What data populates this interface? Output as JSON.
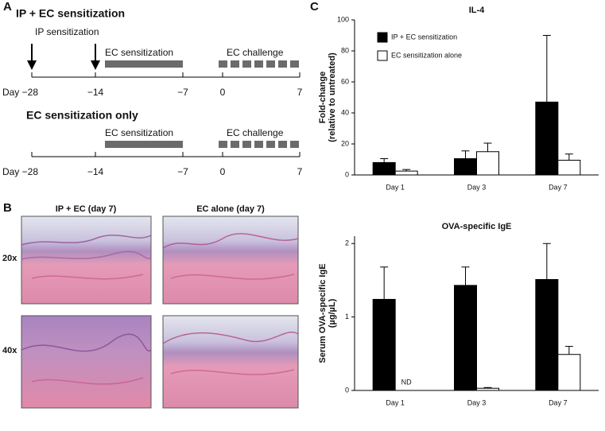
{
  "panel_a": {
    "label": "A",
    "timelines": [
      {
        "title": "IP + EC sensitization",
        "arrow_label": "IP sensitization",
        "sensitization_label": "EC sensitization",
        "challenge_label": "EC challenge",
        "ticks": [
          "Day −28",
          "−14",
          "−7",
          "0",
          "7"
        ]
      },
      {
        "title": "EC sensitization only",
        "sensitization_label": "EC sensitization",
        "challenge_label": "EC challenge",
        "ticks": [
          "Day −28",
          "−14",
          "−7",
          "0",
          "7"
        ]
      }
    ]
  },
  "panel_b": {
    "label": "B",
    "columns": [
      "IP + EC (day 7)",
      "EC alone (day 7)"
    ],
    "rows": [
      "20x",
      "40x"
    ]
  },
  "panel_c": {
    "label": "C"
  },
  "chart_data": [
    {
      "type": "bar",
      "title": "IL-4",
      "ylabel": [
        "Fold-change",
        "(relative to untreated)"
      ],
      "categories": [
        "Day 1",
        "Day 3",
        "Day 7"
      ],
      "series": [
        {
          "name": "IP + EC sensitization",
          "color": "#000000",
          "values": [
            8,
            10.5,
            47
          ],
          "errors": [
            2.5,
            5,
            43
          ]
        },
        {
          "name": "EC sensitization alone",
          "color": "#ffffff",
          "values": [
            2.5,
            15,
            9.5
          ],
          "errors": [
            1,
            5.5,
            4
          ]
        }
      ],
      "ylim": [
        0,
        100
      ],
      "yticks": [
        0,
        20,
        40,
        60,
        80,
        100
      ],
      "legend": "upper left"
    },
    {
      "type": "bar",
      "title": "OVA-specific IgE",
      "ylabel": [
        "Serum OVA-specific IgE",
        "(µg/µL)"
      ],
      "categories": [
        "Day 1",
        "Day 3",
        "Day 7"
      ],
      "series": [
        {
          "color": "#000000",
          "values": [
            1.24,
            1.43,
            1.51
          ],
          "errors": [
            0.44,
            0.25,
            0.49
          ]
        },
        {
          "color": "#ffffff",
          "values": [
            null,
            0.03,
            0.49
          ],
          "errors": [
            null,
            0.01,
            0.11
          ]
        }
      ],
      "annotations": [
        "ND"
      ],
      "ylim": [
        0,
        2.1
      ],
      "yticks": [
        0,
        1,
        2
      ]
    }
  ]
}
